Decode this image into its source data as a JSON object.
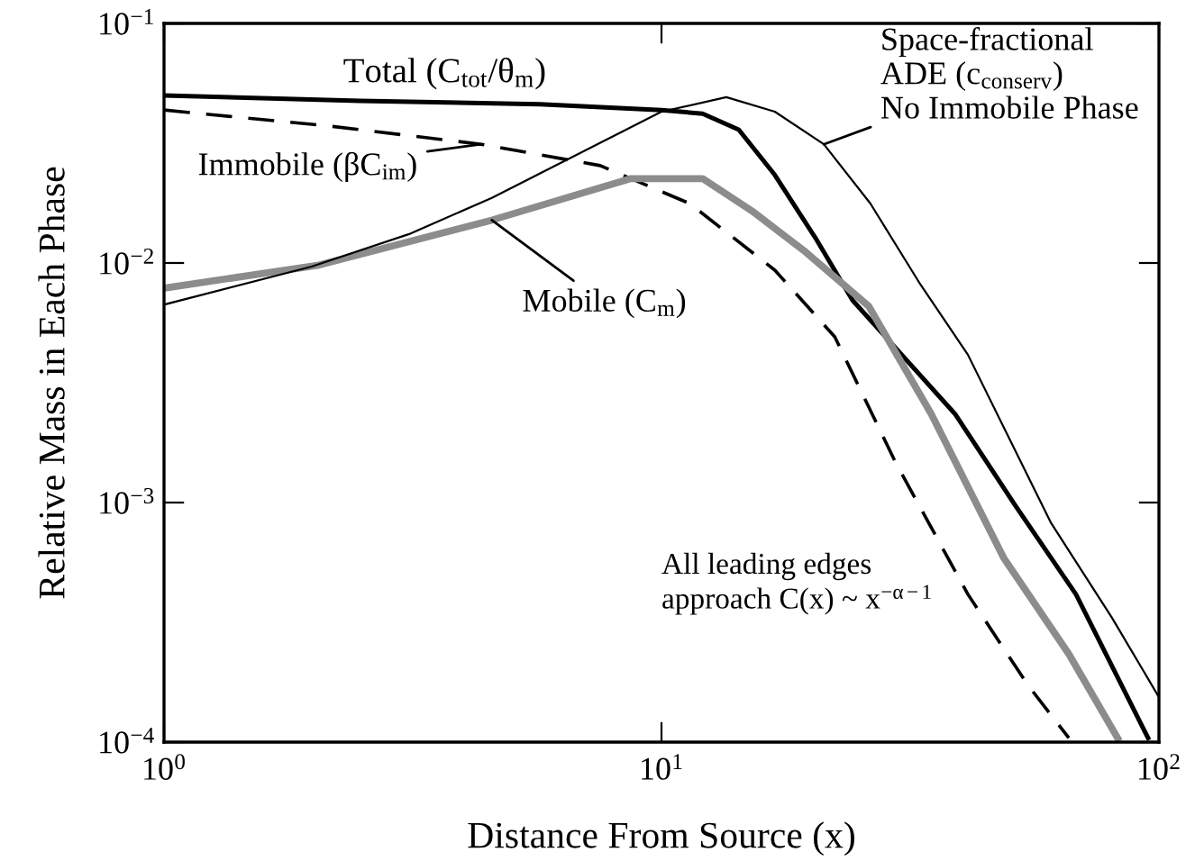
{
  "chart_data": {
    "type": "line",
    "xlabel": "Distance From Source (x)",
    "ylabel": "Relative Mass in Each Phase",
    "log": "xy",
    "grid": false,
    "legend": false,
    "xlim": [
      1,
      100
    ],
    "ylim": [
      0.0001,
      0.1
    ],
    "xticks": [
      {
        "value": 1,
        "label": "10$^{0}$"
      },
      {
        "value": 10,
        "label": "10$^{1}$"
      },
      {
        "value": 100,
        "label": "10$^{2}$"
      }
    ],
    "yticks": [
      {
        "value": 0.0001,
        "label": "10$^{−4}$"
      },
      {
        "value": 0.001,
        "label": "10$^{−3}$"
      },
      {
        "value": 0.01,
        "label": "10$^{−2}$"
      },
      {
        "value": 0.1,
        "label": "10$^{−1}$"
      }
    ],
    "series": [
      {
        "color": "#000000",
        "line_style": "solid",
        "x": [
          1,
          2.48,
          5.7,
          10,
          12.1,
          14.3,
          16.9,
          20.5,
          24.2,
          39,
          51.3,
          68.1,
          95.1
        ],
        "values": [
          0.05,
          0.0475,
          0.046,
          0.0435,
          0.042,
          0.036,
          0.0233,
          0.0125,
          0.007,
          0.00233,
          0.00098,
          0.000414,
          0.000104
        ]
      },
      {
        "color": "#000000",
        "line_style": "dashed",
        "x": [
          1,
          2.15,
          4.34,
          7.53,
          11.4,
          16.9,
          22.3,
          29.6,
          41.3,
          54.4,
          65.9
        ],
        "values": [
          0.0435,
          0.0373,
          0.0313,
          0.0255,
          0.0177,
          0.00933,
          0.00492,
          0.00146,
          0.000414,
          0.000174,
          0.000104
        ]
      },
      {
        "color": "#8c8c8c",
        "line_style": "solid",
        "x": [
          1,
          2.05,
          4.56,
          8.68,
          12.1,
          15.2,
          19.5,
          26.1,
          34.9,
          48.8,
          65.9,
          82.6
        ],
        "values": [
          0.00785,
          0.0098,
          0.0151,
          0.0225,
          0.0225,
          0.0165,
          0.0111,
          0.0066,
          0.00233,
          0.000585,
          0.000233,
          0.000104
        ]
      },
      {
        "color": "#000000",
        "line_style": "solid",
        "x": [
          1,
          1.98,
          3.11,
          4.56,
          10,
          13.5,
          16.9,
          21.2,
          26.3,
          33.0,
          41.3,
          60.6,
          80.5,
          100
        ],
        "values": [
          0.0067,
          0.00966,
          0.0132,
          0.0187,
          0.0428,
          0.0492,
          0.0428,
          0.0313,
          0.0177,
          0.00826,
          0.00414,
          0.000826,
          0.00033,
          0.000154
        ]
      }
    ],
    "annotations": [
      "Total (C$_{tot}$/θ$_{m}$)",
      {
        "text": "Immobile (βC$_{im}$)",
        "x": 4.34,
        "y": 0.0313
      },
      {
        "text": "Mobile (C$_{m}$)",
        "x": 4.56,
        "y": 0.0151
      },
      {
        "text": "Space-fractional\nADE (c$_{conserv}$)\nNo Immobile Phase",
        "x": 21.2,
        "y": 0.0313
      },
      "All leading edges\napproach C(x) ~ x$^{−α−1}$"
    ]
  }
}
